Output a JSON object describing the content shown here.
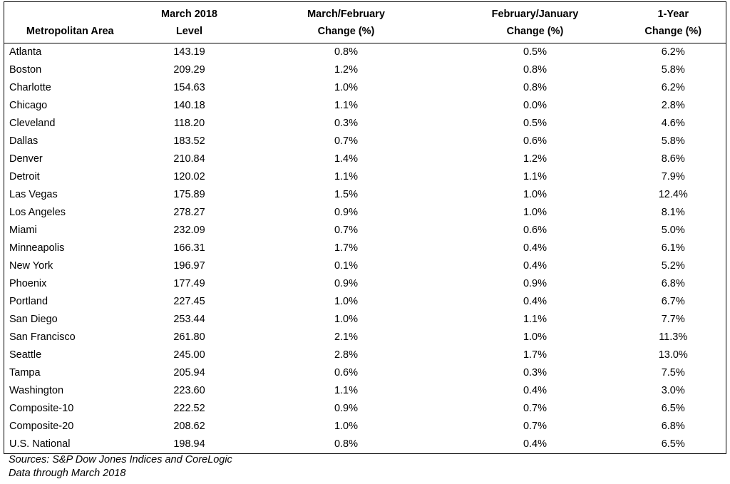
{
  "table": {
    "columns": [
      [
        "Metropolitan Area"
      ],
      [
        "March 2018",
        "Level"
      ],
      [
        "March/February",
        "Change (%)"
      ],
      [
        "February/January",
        "Change (%)"
      ],
      [
        "1-Year",
        "Change (%)"
      ]
    ],
    "rows": [
      [
        "Atlanta",
        "143.19",
        "0.8%",
        "0.5%",
        "6.2%"
      ],
      [
        "Boston",
        "209.29",
        "1.2%",
        "0.8%",
        "5.8%"
      ],
      [
        "Charlotte",
        "154.63",
        "1.0%",
        "0.8%",
        "6.2%"
      ],
      [
        "Chicago",
        "140.18",
        "1.1%",
        "0.0%",
        "2.8%"
      ],
      [
        "Cleveland",
        "118.20",
        "0.3%",
        "0.5%",
        "4.6%"
      ],
      [
        "Dallas",
        "183.52",
        "0.7%",
        "0.6%",
        "5.8%"
      ],
      [
        "Denver",
        "210.84",
        "1.4%",
        "1.2%",
        "8.6%"
      ],
      [
        "Detroit",
        "120.02",
        "1.1%",
        "1.1%",
        "7.9%"
      ],
      [
        "Las Vegas",
        "175.89",
        "1.5%",
        "1.0%",
        "12.4%"
      ],
      [
        "Los Angeles",
        "278.27",
        "0.9%",
        "1.0%",
        "8.1%"
      ],
      [
        "Miami",
        "232.09",
        "0.7%",
        "0.6%",
        "5.0%"
      ],
      [
        "Minneapolis",
        "166.31",
        "1.7%",
        "0.4%",
        "6.1%"
      ],
      [
        "New York",
        "196.97",
        "0.1%",
        "0.4%",
        "5.2%"
      ],
      [
        "Phoenix",
        "177.49",
        "0.9%",
        "0.9%",
        "6.8%"
      ],
      [
        "Portland",
        "227.45",
        "1.0%",
        "0.4%",
        "6.7%"
      ],
      [
        "San Diego",
        "253.44",
        "1.0%",
        "1.1%",
        "7.7%"
      ],
      [
        "San Francisco",
        "261.80",
        "2.1%",
        "1.0%",
        "11.3%"
      ],
      [
        "Seattle",
        "245.00",
        "2.8%",
        "1.7%",
        "13.0%"
      ],
      [
        "Tampa",
        "205.94",
        "0.6%",
        "0.3%",
        "7.5%"
      ],
      [
        "Washington",
        "223.60",
        "1.1%",
        "0.4%",
        "3.0%"
      ],
      [
        "Composite-10",
        "222.52",
        "0.9%",
        "0.7%",
        "6.5%"
      ],
      [
        "Composite-20",
        "208.62",
        "1.0%",
        "0.7%",
        "6.8%"
      ],
      [
        "U.S. National",
        "198.94",
        "0.8%",
        "0.4%",
        "6.5%"
      ]
    ]
  },
  "footnotes": [
    "Sources: S&P Dow Jones Indices and CoreLogic",
    "Data through March 2018"
  ]
}
